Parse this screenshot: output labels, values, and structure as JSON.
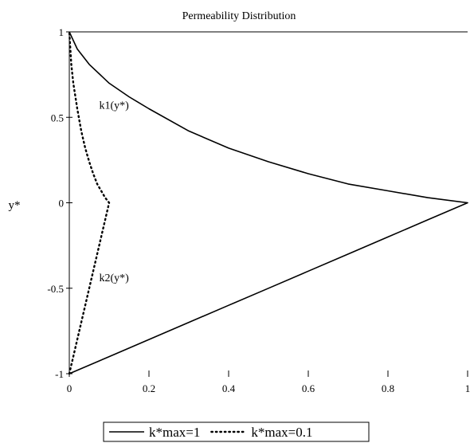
{
  "chart_data": {
    "type": "line",
    "title": "Permeability Distribution",
    "xlabel": "",
    "ylabel": "y*",
    "xlim": [
      0,
      1
    ],
    "ylim": [
      -1,
      1
    ],
    "xticks": [
      0,
      0.2,
      0.4,
      0.6,
      0.8,
      1
    ],
    "xtick_labels": [
      "0",
      "0.2",
      "0.4",
      "0.6",
      "0.8",
      "1"
    ],
    "yticks": [
      -1,
      -0.5,
      0,
      0.5,
      1
    ],
    "ytick_labels": [
      "-1",
      "-0.5",
      "0",
      "0.5",
      "1"
    ],
    "grid": false,
    "legend_position": "bottom-center",
    "series": [
      {
        "name": "k*max=1",
        "style": "solid",
        "color": "#000000",
        "points": [
          [
            0,
            -1
          ],
          [
            0.1,
            -0.9
          ],
          [
            0.2,
            -0.8
          ],
          [
            0.3,
            -0.7
          ],
          [
            0.4,
            -0.6
          ],
          [
            0.5,
            -0.5
          ],
          [
            0.6,
            -0.4
          ],
          [
            0.7,
            -0.3
          ],
          [
            0.8,
            -0.2
          ],
          [
            0.9,
            -0.1
          ],
          [
            1,
            0
          ],
          [
            0.9,
            0.03
          ],
          [
            0.8,
            0.07
          ],
          [
            0.7,
            0.11
          ],
          [
            0.6,
            0.17
          ],
          [
            0.5,
            0.24
          ],
          [
            0.4,
            0.32
          ],
          [
            0.3,
            0.42
          ],
          [
            0.2,
            0.55
          ],
          [
            0.15,
            0.62
          ],
          [
            0.1,
            0.7
          ],
          [
            0.05,
            0.81
          ],
          [
            0.02,
            0.9
          ],
          [
            0,
            1
          ]
        ]
      },
      {
        "name": "k*max=0.1",
        "style": "dotted",
        "color": "#000000",
        "points": [
          [
            0,
            -1
          ],
          [
            0.02,
            -0.8
          ],
          [
            0.04,
            -0.6
          ],
          [
            0.06,
            -0.4
          ],
          [
            0.08,
            -0.2
          ],
          [
            0.1,
            0
          ],
          [
            0.09,
            0.03
          ],
          [
            0.08,
            0.07
          ],
          [
            0.07,
            0.11
          ],
          [
            0.06,
            0.17
          ],
          [
            0.05,
            0.24
          ],
          [
            0.04,
            0.32
          ],
          [
            0.03,
            0.42
          ],
          [
            0.02,
            0.55
          ],
          [
            0.01,
            0.7
          ],
          [
            0.005,
            0.81
          ],
          [
            0,
            1
          ]
        ]
      }
    ],
    "annotations": [
      {
        "text": "k1(y*)",
        "x": 0.075,
        "y": 0.55
      },
      {
        "text": "k2(y*)",
        "x": 0.075,
        "y": -0.46
      }
    ]
  }
}
